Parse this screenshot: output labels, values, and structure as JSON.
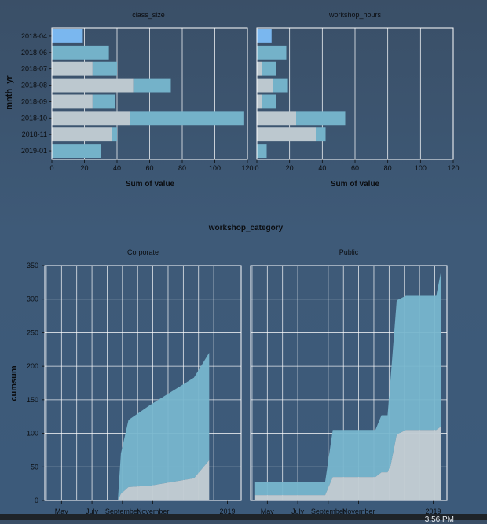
{
  "colors": {
    "bar_public": "#74b2c9",
    "bar_corporate": "#bcc8cf",
    "bar_highlight": "#7ab7ef",
    "area_public": "#77b6cd",
    "area_corporate": "#c2ccd3",
    "grid": "#ffffff",
    "text": "#0b0d10"
  },
  "taskbar": {
    "time": "3:56 PM"
  },
  "chart_data": [
    {
      "type": "bar",
      "title": "class_size",
      "ylabel": "mnth_yr",
      "xlabel": "Sum of value",
      "xlim": [
        0,
        120
      ],
      "xticks": [
        "0",
        "20",
        "40",
        "60",
        "80",
        "100",
        "120"
      ],
      "categories": [
        "2018-04",
        "2018-06",
        "2018-07",
        "2018-08",
        "2018-09",
        "2018-10",
        "2018-11",
        "2019-01"
      ],
      "series": [
        {
          "name": "",
          "values": [
            0,
            0,
            25,
            50,
            25,
            48,
            37,
            0
          ]
        },
        {
          "name": "",
          "values": [
            19,
            35,
            15,
            23,
            14,
            70,
            3,
            30
          ]
        }
      ]
    },
    {
      "type": "bar",
      "title": "workshop_hours",
      "xlabel": "Sum of value",
      "xlim": [
        0,
        120
      ],
      "xticks": [
        "0",
        "20",
        "40",
        "60",
        "80",
        "100",
        "120"
      ],
      "categories": [
        "2018-04",
        "2018-06",
        "2018-07",
        "2018-08",
        "2018-09",
        "2018-10",
        "2018-11",
        "2019-01"
      ],
      "series": [
        {
          "name": "",
          "values": [
            0,
            0,
            3,
            10,
            3,
            24,
            36,
            0
          ]
        },
        {
          "name": "",
          "values": [
            9,
            18,
            9,
            9,
            9,
            30,
            6,
            6
          ]
        }
      ]
    },
    {
      "type": "area",
      "suptitle": "workshop_category",
      "title": "Corporate",
      "ylabel": "cumsum",
      "ylim": [
        0,
        350
      ],
      "yticks": [
        "0",
        "50",
        "100",
        "150",
        "200",
        "250",
        "300",
        "350"
      ],
      "xticks": [
        "May",
        "July",
        "September",
        "November",
        "2019"
      ],
      "series": [
        {
          "name": "",
          "x": [
            0,
            1.85,
            1.95,
            2.2,
            2.9,
            4.35,
            4.85
          ],
          "values": [
            0,
            0,
            10,
            20,
            22,
            33,
            60
          ]
        },
        {
          "name": "",
          "x": [
            0,
            1.85,
            1.95,
            2.3,
            2.9,
            4.35,
            4.85
          ],
          "values": [
            0,
            0,
            60,
            100,
            120,
            150,
            160
          ]
        }
      ]
    },
    {
      "type": "area",
      "title": "Public",
      "ylim": [
        0,
        350
      ],
      "xticks": [
        "May",
        "July",
        "September",
        "November",
        "2019"
      ],
      "series": [
        {
          "name": "",
          "x": [
            -0.4,
            1.9,
            2.15,
            3.55,
            3.75,
            3.95,
            4.05,
            4.25,
            4.55,
            5.55,
            5.7
          ],
          "values": [
            8,
            8,
            35,
            35,
            42,
            42,
            52,
            98,
            105,
            105,
            110
          ]
        },
        {
          "name": "",
          "x": [
            -0.4,
            1.9,
            2.15,
            3.55,
            3.75,
            3.95,
            4.05,
            4.25,
            4.55,
            5.55,
            5.7
          ],
          "values": [
            20,
            20,
            70,
            70,
            85,
            85,
            130,
            200,
            200,
            200,
            230
          ]
        }
      ]
    }
  ]
}
